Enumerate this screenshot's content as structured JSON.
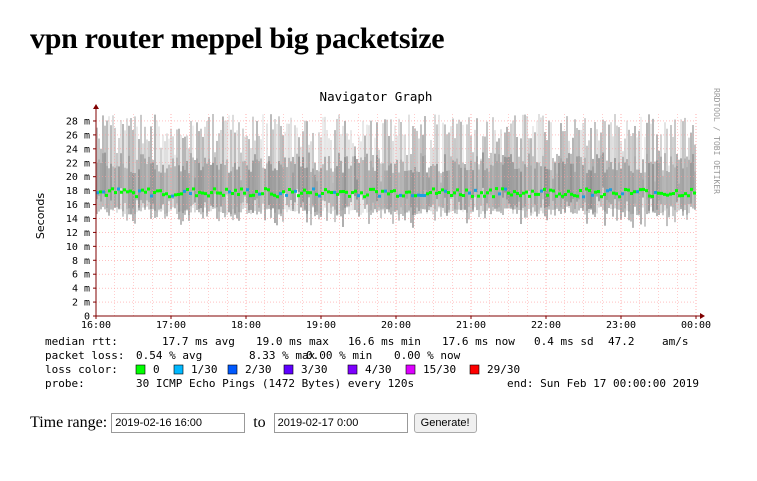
{
  "page": {
    "heading": "vpn router meppel big packetsize"
  },
  "chart_data": {
    "type": "line",
    "title": "Navigator Graph",
    "ylabel": "Seconds",
    "watermark": "RRDTOOL / TOBI OETIKER",
    "ylim": [
      0,
      29
    ],
    "y_ticks": [
      0,
      2,
      4,
      6,
      8,
      10,
      12,
      14,
      16,
      18,
      20,
      22,
      24,
      26,
      28
    ],
    "y_tick_labels": [
      "0",
      "2 m",
      "4 m",
      "6 m",
      "8 m",
      "10 m",
      "12 m",
      "14 m",
      "16 m",
      "18 m",
      "20 m",
      "22 m",
      "24 m",
      "26 m",
      "28 m"
    ],
    "x_tick_labels": [
      "16:00",
      "17:00",
      "18:00",
      "19:00",
      "20:00",
      "21:00",
      "22:00",
      "23:00",
      "00:00"
    ],
    "series": [
      {
        "name": "median rtt",
        "base_ms": 17.7,
        "min_ms": 16.6,
        "max_ms": 19.0
      }
    ],
    "smoke_range_ms": [
      14.5,
      29
    ],
    "colors": {
      "grid": "#ff9b9b",
      "axis": "#800000",
      "median_green": "#00ff00",
      "median_blue": "#1aa0e0",
      "smoke": "#444444"
    },
    "legend": {
      "median_rtt": {
        "label": "median rtt:",
        "avg": "17.7 ms avg",
        "max": "19.0 ms max",
        "min": "16.6 ms min",
        "now": "17.6 ms now",
        "sd": "0.4 ms sd",
        "am": "47.2",
        "am_unit": "am/s"
      },
      "packet_loss": {
        "label": "packet loss:",
        "avg": "0.54 % avg",
        "max": "8.33 % max",
        "min": "0.00 % min",
        "now": "0.00 % now"
      },
      "loss_color": {
        "label": "loss color:",
        "items": [
          {
            "label": "0",
            "color": "#00ff00"
          },
          {
            "label": "1/30",
            "color": "#00b8ff"
          },
          {
            "label": "2/30",
            "color": "#0059ff"
          },
          {
            "label": "3/30",
            "color": "#5e00ff"
          },
          {
            "label": "4/30",
            "color": "#7e00ff"
          },
          {
            "label": "15/30",
            "color": "#dd00ff"
          },
          {
            "label": "29/30",
            "color": "#ff0000"
          }
        ]
      },
      "probe": {
        "label": "probe:",
        "text": "30 ICMP Echo Pings (1472 Bytes) every 120s",
        "end": "end: Sun Feb 17 00:00:00 2019"
      }
    }
  },
  "time_range": {
    "label": "Time range:",
    "from_value": "2019-02-16 16:00",
    "to_label": "to",
    "to_value": "2019-02-17 0:00",
    "generate_label": "Generate!"
  }
}
